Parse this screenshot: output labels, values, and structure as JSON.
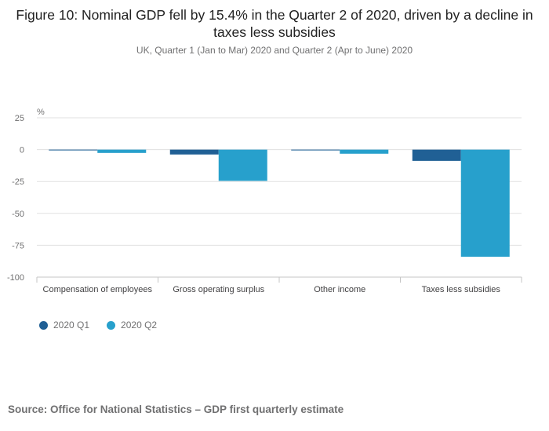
{
  "chart_data": {
    "type": "bar",
    "title": "Figure 10: Nominal GDP fell by 15.4% in the Quarter 2 of 2020, driven by a decline in taxes less subsidies",
    "subtitle": "UK, Quarter 1 (Jan to Mar) 2020 and Quarter 2 (Apr to June) 2020",
    "ylabel": "%",
    "xlabel": "",
    "ylim": [
      -100,
      25
    ],
    "yticks": [
      25,
      0,
      -25,
      -50,
      -75,
      -100
    ],
    "grid": true,
    "legend_position": "bottom-left",
    "categories": [
      "Compensation of employees",
      "Gross operating surplus",
      "Other income",
      "Taxes less subsidies"
    ],
    "series": [
      {
        "name": "2020 Q1",
        "color": "#206095",
        "values": [
          -0.5,
          -3.8,
          -0.5,
          -8.8
        ]
      },
      {
        "name": "2020 Q2",
        "color": "#27a0cc",
        "values": [
          -2.6,
          -24.5,
          -3.2,
          -84.0
        ]
      }
    ]
  },
  "source": "Source: Office for National Statistics – GDP first quarterly estimate"
}
